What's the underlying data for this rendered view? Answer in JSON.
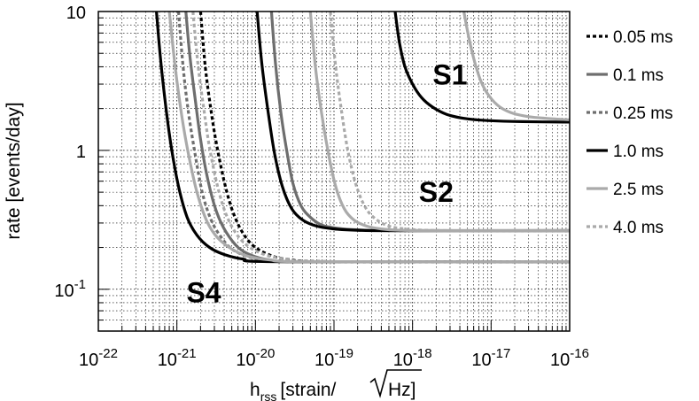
{
  "chart_data": {
    "type": "line",
    "xlabel": "h",
    "xlabel_sub": "rss",
    "xlabel_units": "[strain/",
    "xlabel_sqrt": "Hz",
    "xlabel_close": "]",
    "ylabel": "rate [events/day]",
    "xscale": "log",
    "yscale": "log",
    "xlim": [
      1e-22,
      1e-16
    ],
    "ylim": [
      0.05,
      10
    ],
    "grid": true,
    "legend_position": "right",
    "x_ticks": [
      {
        "base": "10",
        "exp": "-22",
        "value": 1e-22
      },
      {
        "base": "10",
        "exp": "-21",
        "value": 1e-21
      },
      {
        "base": "10",
        "exp": "-20",
        "value": 1e-20
      },
      {
        "base": "10",
        "exp": "-19",
        "value": 1e-19
      },
      {
        "base": "10",
        "exp": "-18",
        "value": 1e-18
      },
      {
        "base": "10",
        "exp": "-17",
        "value": 1e-17
      },
      {
        "base": "10",
        "exp": "-16",
        "value": 1e-16
      }
    ],
    "y_ticks": [
      {
        "base": "10",
        "exp": "-1",
        "value": 0.1
      },
      {
        "base": "1",
        "exp": "",
        "value": 1
      },
      {
        "base": "10",
        "exp": "",
        "value": 10
      }
    ],
    "region_labels": [
      {
        "text": "S1",
        "x": 3e-18,
        "y": 3.5
      },
      {
        "text": "S2",
        "x": 2e-18,
        "y": 0.5
      },
      {
        "text": "S4",
        "x": 2.2e-21,
        "y": 0.095
      }
    ],
    "series": [
      {
        "name": "0.05 ms",
        "color": "#000000",
        "dash": "dotted",
        "x": [
          2e-21,
          2.3e-21,
          2.7e-21,
          3.2e-21,
          4e-21,
          5e-21,
          6.5e-21,
          9e-21,
          1.4e-20,
          2.5e-20,
          1e-19,
          1e-16
        ],
        "y": [
          10,
          4,
          2,
          1.1,
          0.6,
          0.38,
          0.27,
          0.21,
          0.18,
          0.165,
          0.158,
          0.158
        ]
      },
      {
        "name": "0.1 ms",
        "color": "#6e6e6e",
        "dash": "solid",
        "x": [
          1.3e-21,
          1.45e-21,
          1.7e-21,
          2e-21,
          2.5e-21,
          3.2e-21,
          4.2e-21,
          6e-21,
          9e-21,
          1.5e-20,
          4e-20,
          1e-16
        ],
        "y": [
          10,
          5,
          2.4,
          1.2,
          0.6,
          0.36,
          0.26,
          0.2,
          0.175,
          0.163,
          0.158,
          0.158
        ]
      },
      {
        "name": "0.25 ms",
        "color": "#6e6e6e",
        "dash": "dotted",
        "x": [
          1.05e-21,
          1.2e-21,
          1.4e-21,
          1.7e-21,
          2.1e-21,
          2.7e-21,
          3.6e-21,
          5e-21,
          8e-21,
          1.4e-20,
          4e-20,
          1e-16
        ],
        "y": [
          10,
          4,
          1.9,
          0.95,
          0.5,
          0.32,
          0.24,
          0.195,
          0.172,
          0.162,
          0.158,
          0.158
        ]
      },
      {
        "name": "1.0 ms",
        "color": "#000000",
        "dash": "solid",
        "x": [
          5.5e-22,
          6.2e-22,
          7.2e-22,
          8.5e-22,
          1.05e-21,
          1.35e-21,
          1.8e-21,
          2.6e-21,
          4e-21,
          7e-21,
          2e-20,
          1e-16
        ],
        "y": [
          10,
          4.5,
          2.1,
          1.05,
          0.55,
          0.33,
          0.245,
          0.2,
          0.178,
          0.165,
          0.158,
          0.158
        ]
      },
      {
        "name": "2.5 ms",
        "color": "#aaaaaa",
        "dash": "solid",
        "x": [
          8e-22,
          9.5e-22,
          1.15e-21,
          1.4e-21,
          1.8e-21,
          2.4e-21,
          3.3e-21,
          5e-21,
          8e-21,
          1.5e-20,
          5e-20,
          1e-16
        ],
        "y": [
          10,
          4,
          1.8,
          0.95,
          0.5,
          0.31,
          0.235,
          0.195,
          0.173,
          0.163,
          0.158,
          0.158
        ]
      },
      {
        "name": "4.0 ms",
        "color": "#aaaaaa",
        "dash": "dotted",
        "x": [
          1.6e-21,
          1.85e-21,
          2.2e-21,
          2.6e-21,
          3.3e-21,
          4.2e-21,
          5.6e-21,
          8e-21,
          1.3e-20,
          2.5e-20,
          8e-20,
          1e-16
        ],
        "y": [
          10,
          4.2,
          2,
          1.05,
          0.55,
          0.35,
          0.255,
          0.205,
          0.178,
          0.165,
          0.158,
          0.158
        ]
      },
      {
        "name": "S2 0.1 ms",
        "color": "#6e6e6e",
        "dash": "solid",
        "legend": false,
        "x": [
          1.6e-20,
          1.8e-20,
          2.1e-20,
          2.5e-20,
          3e-20,
          3.8e-20,
          5e-20,
          7e-20,
          1.1e-19,
          2e-19,
          6e-19,
          1e-16
        ],
        "y": [
          10,
          4.2,
          1.9,
          1.0,
          0.58,
          0.4,
          0.33,
          0.29,
          0.275,
          0.268,
          0.265,
          0.265
        ]
      },
      {
        "name": "S2 1.0 ms",
        "color": "#000000",
        "dash": "solid",
        "legend": false,
        "x": [
          1.05e-20,
          1.2e-20,
          1.45e-20,
          1.75e-20,
          2.2e-20,
          2.9e-20,
          4e-20,
          6e-20,
          1e-19,
          2e-19,
          6e-19,
          1e-16
        ],
        "y": [
          10,
          4.3,
          1.9,
          0.95,
          0.55,
          0.38,
          0.315,
          0.285,
          0.272,
          0.266,
          0.264,
          0.264
        ]
      },
      {
        "name": "S2 2.5 ms",
        "color": "#aaaaaa",
        "dash": "solid",
        "legend": false,
        "x": [
          5e-20,
          5.8e-20,
          7e-20,
          8.5e-20,
          1.05e-19,
          1.35e-19,
          1.8e-19,
          2.6e-19,
          4e-19,
          7e-19,
          2e-18,
          1e-16
        ],
        "y": [
          10,
          4,
          1.8,
          0.95,
          0.55,
          0.38,
          0.315,
          0.285,
          0.272,
          0.266,
          0.264,
          0.264
        ]
      },
      {
        "name": "S2 4.0 ms",
        "color": "#aaaaaa",
        "dash": "dotted",
        "legend": false,
        "x": [
          9e-20,
          1.05e-19,
          1.25e-19,
          1.5e-19,
          1.9e-19,
          2.5e-19,
          3.4e-19,
          5e-19,
          8e-19,
          1.5e-18,
          5e-18,
          1e-16
        ],
        "y": [
          10,
          4,
          1.9,
          1.0,
          0.57,
          0.39,
          0.32,
          0.285,
          0.272,
          0.266,
          0.264,
          0.264
        ]
      },
      {
        "name": "S1 1.0 ms",
        "color": "#000000",
        "dash": "solid",
        "legend": false,
        "x": [
          6e-19,
          6.8e-19,
          8e-19,
          1e-18,
          1.3e-18,
          1.8e-18,
          2.7e-18,
          4.5e-18,
          9e-18,
          2.5e-17,
          1e-16
        ],
        "y": [
          10,
          6,
          4,
          3.0,
          2.4,
          2.05,
          1.82,
          1.7,
          1.64,
          1.61,
          1.6
        ]
      },
      {
        "name": "S1 2.5 ms",
        "color": "#aaaaaa",
        "dash": "solid",
        "legend": false,
        "x": [
          4.5e-18,
          5.2e-18,
          6.2e-18,
          7.5e-18,
          9.5e-18,
          1.3e-17,
          1.9e-17,
          3e-17,
          5e-17,
          1e-16
        ],
        "y": [
          10,
          6.5,
          4.3,
          3.1,
          2.45,
          2.05,
          1.85,
          1.75,
          1.7,
          1.66
        ]
      }
    ]
  }
}
